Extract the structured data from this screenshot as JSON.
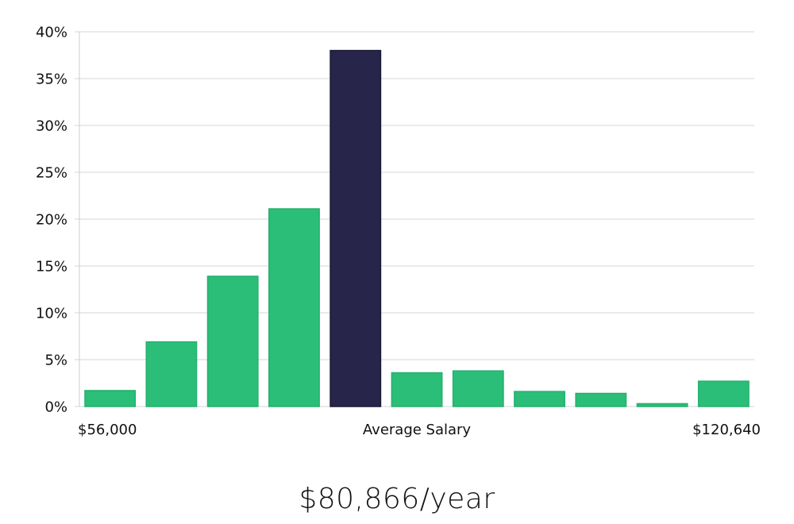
{
  "chart_data": {
    "type": "bar",
    "title": "",
    "xlabel": "",
    "ylabel": "",
    "ylim": [
      0,
      40
    ],
    "y_ticks": [
      0,
      5,
      10,
      15,
      20,
      25,
      30,
      35,
      40
    ],
    "y_tick_suffix": "%",
    "x_labels": {
      "left": "$56,000",
      "center": "Average Salary",
      "right": "$120,640"
    },
    "values": [
      1.7,
      6.9,
      13.9,
      21.1,
      38.0,
      3.6,
      3.8,
      1.6,
      1.4,
      0.3,
      2.7
    ],
    "highlight_index": 4,
    "colors": {
      "bar": "#2BBE78",
      "highlight": "#28254A",
      "grid": "#DDDDDD",
      "axis": "#CCCCCC"
    }
  },
  "summary": {
    "salary": "$80,866/year"
  }
}
